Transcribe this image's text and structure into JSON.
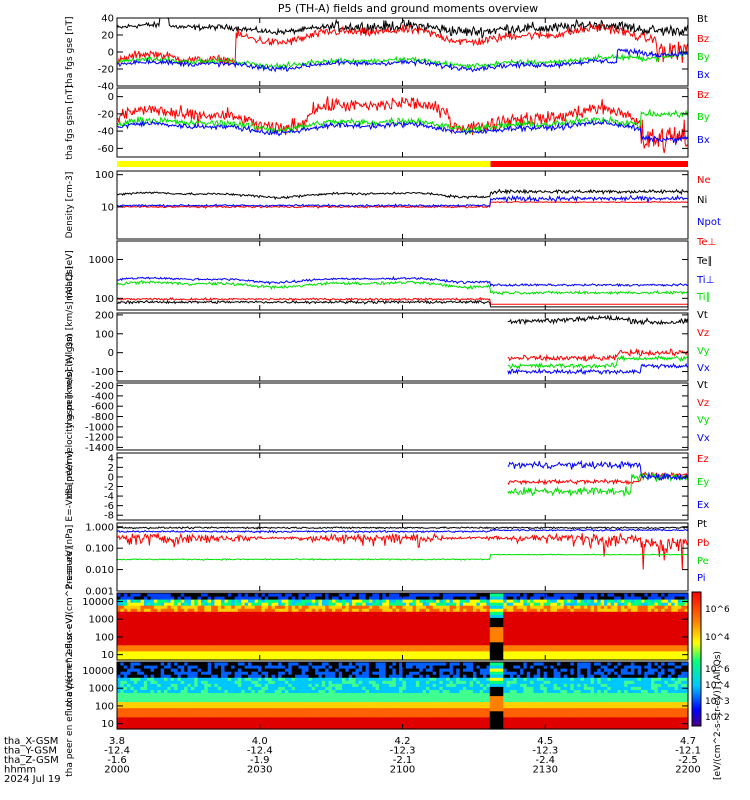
{
  "title": "P5 (TH-A) fields and ground moments overview",
  "colors": {
    "black": "#000000",
    "red": "#ff0000",
    "green": "#00e000",
    "blue": "#0000ff",
    "yellow": "#ffff00"
  },
  "chart_data": [
    {
      "type": "line",
      "id": "fgs_gse",
      "ylabel": "tha fgs gse [nT]",
      "ylim": [
        -40,
        40
      ],
      "yticks": [
        -40,
        -20,
        0,
        20,
        40
      ],
      "series": [
        {
          "name": "Bt",
          "color": "black"
        },
        {
          "name": "Bz",
          "color": "red"
        },
        {
          "name": "By",
          "color": "green"
        },
        {
          "name": "Bx",
          "color": "blue"
        }
      ]
    },
    {
      "type": "line",
      "id": "fgs_gsm",
      "ylabel": "tha fgs gsm [nT]",
      "ylim": [
        -70,
        10
      ],
      "yticks": [
        -60,
        -40,
        -20,
        0
      ],
      "series": [
        {
          "name": "Bz",
          "color": "red"
        },
        {
          "name": "By",
          "color": "green"
        },
        {
          "name": "Bx",
          "color": "blue"
        }
      ]
    },
    {
      "type": "line",
      "id": "density",
      "ylabel": "Density [cm-3]",
      "yscale": "log",
      "ylim": [
        1,
        130
      ],
      "yticks": [
        "10",
        "100"
      ],
      "series": [
        {
          "name": "Ne",
          "color": "red"
        },
        {
          "name": "Ni",
          "color": "black"
        },
        {
          "name": "Npot",
          "color": "blue"
        }
      ]
    },
    {
      "type": "line",
      "id": "temp",
      "ylabel": "moat3 [eV]",
      "yscale": "log",
      "ylim": [
        50,
        3000
      ],
      "yticks": [
        "100",
        "1000"
      ],
      "series": [
        {
          "name": "Te⊥",
          "color": "red"
        },
        {
          "name": "Te∥",
          "color": "black"
        },
        {
          "name": "Ti⊥",
          "color": "blue"
        },
        {
          "name": "Ti∥",
          "color": "green"
        }
      ]
    },
    {
      "type": "line",
      "id": "peir_vel",
      "ylabel": "tha peir velocity gsm [km/s] (All Qs)",
      "ylim": [
        -150,
        210
      ],
      "yticks": [
        -100,
        0,
        100,
        200
      ],
      "series": [
        {
          "name": "Vt",
          "color": "black"
        },
        {
          "name": "Vz",
          "color": "red"
        },
        {
          "name": "Vy",
          "color": "green"
        },
        {
          "name": "Vx",
          "color": "blue"
        }
      ]
    },
    {
      "type": "line",
      "id": "peer_vel",
      "ylabel": "tha peer velocity gsm [km/s] (All Qs)",
      "ylim": [
        -1450,
        -150
      ],
      "yticks": [
        -1400,
        -1200,
        -1000,
        -800,
        -600,
        -400,
        -200
      ],
      "series": [
        {
          "name": "Vt",
          "color": "black"
        },
        {
          "name": "Vz",
          "color": "red"
        },
        {
          "name": "Vy",
          "color": "green"
        },
        {
          "name": "Vx",
          "color": "blue"
        }
      ]
    },
    {
      "type": "line",
      "id": "efield",
      "ylabel": "E=-VxB [mV/m]",
      "ylim": [
        -9,
        5
      ],
      "yticks": [
        -8,
        -6,
        -4,
        -2,
        0,
        2,
        4
      ],
      "series": [
        {
          "name": "Ez",
          "color": "red"
        },
        {
          "name": "Ey",
          "color": "green"
        },
        {
          "name": "Ex",
          "color": "blue"
        }
      ]
    },
    {
      "type": "line",
      "id": "pressure",
      "ylabel": "Pressure [nPa]",
      "yscale": "log",
      "ylim": [
        0.001,
        1.5
      ],
      "yticks": [
        "0.001",
        "0.010",
        "0.100",
        "1.000"
      ],
      "series": [
        {
          "name": "Pt",
          "color": "black"
        },
        {
          "name": "Pb",
          "color": "red"
        },
        {
          "name": "Pe",
          "color": "green"
        },
        {
          "name": "Pi",
          "color": "blue"
        }
      ]
    },
    {
      "type": "heatmap",
      "id": "peir_spec",
      "ylabel": "tha peir en eflux eV/(cm^2-s-sr-eV)",
      "yscale": "log",
      "ylim": [
        5,
        30000
      ],
      "yticks": [
        "10",
        "100",
        "1000",
        "10000"
      ]
    },
    {
      "type": "heatmap",
      "id": "peer_spec",
      "ylabel": "tha peer en eflux eV/(cm^2-s-sr-eV)",
      "yscale": "log",
      "ylim": [
        5,
        30000
      ],
      "yticks": [
        "10",
        "100",
        "1000",
        "10000"
      ]
    }
  ],
  "colorbar": {
    "label": "[eV/(cm^2-s-str-eV)] (All Qs)",
    "ticks_upper": [
      "10^6",
      "10^4"
    ],
    "ticks_lower": [
      "10^6",
      "10^4",
      "10^3",
      "10^2"
    ]
  },
  "xaxis": {
    "rows": [
      {
        "label": "tha_X-GSM",
        "values": [
          "3.8",
          "4.0",
          "4.2",
          "4.5",
          "4.7"
        ]
      },
      {
        "label": "tha_Y-GSM",
        "values": [
          "-12.4",
          "-12.4",
          "-12.3",
          "-12.3",
          "-12.1"
        ]
      },
      {
        "label": "tha_Z-GSM",
        "values": [
          "-1.6",
          "-1.9",
          "-2.1",
          "-2.4",
          "-2.5"
        ]
      },
      {
        "label": "hhmm",
        "values": [
          "2000",
          "2030",
          "2100",
          "2130",
          "2200"
        ]
      }
    ],
    "date": "2024 Jul 19",
    "time_range_min": [
      0,
      120
    ],
    "tick_times_min": [
      0,
      30,
      60,
      90,
      120
    ]
  },
  "mode_bar": {
    "segments": [
      {
        "color": "yellow",
        "start_min": 0,
        "end_min": 78.5
      },
      {
        "color": "red",
        "start_min": 78.5,
        "end_min": 120
      }
    ]
  }
}
